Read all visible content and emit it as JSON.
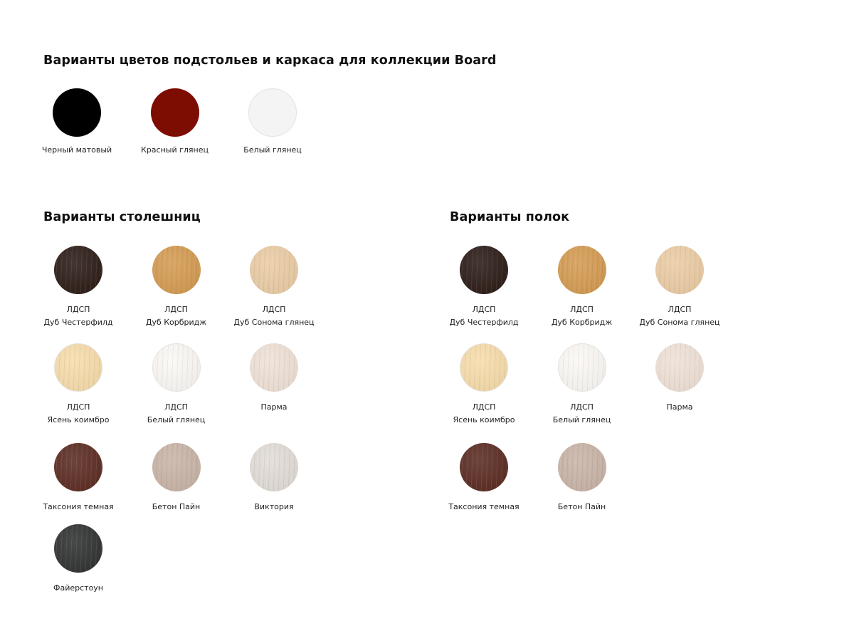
{
  "frame": {
    "title": "Варианты цветов подстольев и каркаса для коллекции Board",
    "items": [
      {
        "label": "Черный матовый",
        "color": "#000000"
      },
      {
        "label": "Красный глянец",
        "color": "#7d0c03"
      },
      {
        "label": "Белый глянец",
        "color": "#f4f4f4"
      }
    ]
  },
  "tabletops": {
    "title": "Варианты столешниц",
    "items": [
      {
        "material": "ЛДСП",
        "label": "Дуб Честерфилд",
        "color": "#2a1a14"
      },
      {
        "material": "ЛДСП",
        "label": "Дуб Корбридж",
        "color": "#d49a50"
      },
      {
        "material": "ЛДСП",
        "label": "Дуб Сонома глянец",
        "color": "#ebcca4"
      },
      {
        "material": "ЛДСП",
        "label": "Ясень коимбро",
        "color": "#f7dcaa"
      },
      {
        "material": "ЛДСП",
        "label": "Белый глянец",
        "color": "#fbf8f5"
      },
      {
        "material": "",
        "label": "Парма",
        "color": "#efe1d6"
      },
      {
        "material": "",
        "label": "Таксония темная",
        "color": "#5a2a20"
      },
      {
        "material": "",
        "label": "Бетон Пайн",
        "color": "#c9b3a6"
      },
      {
        "material": "",
        "label": "Виктория",
        "color": "#e2dcd6"
      },
      {
        "material": "",
        "label": "Файерстоун",
        "color": "#2f3030"
      }
    ]
  },
  "shelves": {
    "title": "Варианты полок",
    "items": [
      {
        "material": "ЛДСП",
        "label": "Дуб Честерфилд",
        "color": "#2a1a14"
      },
      {
        "material": "ЛДСП",
        "label": "Дуб Корбридж",
        "color": "#d49a50"
      },
      {
        "material": "ЛДСП",
        "label": "Дуб Сонома глянец",
        "color": "#ebcca4"
      },
      {
        "material": "ЛДСП",
        "label": "Ясень коимбро",
        "color": "#f7dcaa"
      },
      {
        "material": "ЛДСП",
        "label": "Белый глянец",
        "color": "#fbf8f5"
      },
      {
        "material": "",
        "label": "Парма",
        "color": "#efe1d6"
      },
      {
        "material": "",
        "label": "Таксония темная",
        "color": "#5a2a20"
      },
      {
        "material": "",
        "label": "Бетон Пайн",
        "color": "#c9b3a6"
      }
    ]
  }
}
